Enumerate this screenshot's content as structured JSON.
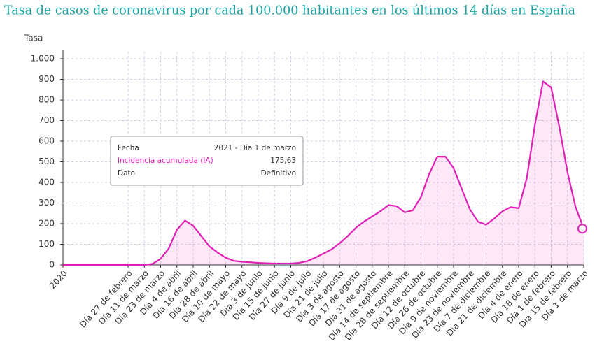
{
  "chart_data": {
    "type": "area",
    "title": "Tasa de casos de coronavirus por cada 100.000 habitantes en los últimos 14 días en España",
    "y_label": "Tasa",
    "categories": [
      "2020",
      null,
      null,
      null,
      null,
      null,
      null,
      null,
      "Día 27 de febrero",
      null,
      "Día 11 de marzo",
      null,
      "Día 23 de marzo",
      null,
      "Día 4 de abril",
      null,
      "Día 16 de abril",
      null,
      "Día 28 de abril",
      null,
      "Día 10 de mayo",
      null,
      "Día 22 de mayo",
      null,
      "Día 3 de junio",
      null,
      "Día 15 de junio",
      null,
      "Día 27 de junio",
      null,
      "Día 9 de julio",
      null,
      "Día 21 de julio",
      null,
      "Día 3 de agosto",
      null,
      "Día 17 de agosto",
      null,
      "Día 31 de agosto",
      null,
      "Día 14 de septiembre",
      null,
      "Día 28 de septiembre",
      null,
      "Día 12 de octubre",
      null,
      "Día 26 de octubre",
      null,
      "Día 9 de noviembre",
      null,
      "Día 23 de noviembre",
      null,
      "Día 7 de diciembre",
      null,
      "Día 21 de diciembre",
      null,
      "Día 4 de enero",
      null,
      "Día 18 de enero",
      null,
      "Día 1 de febrero",
      null,
      "Día 15 de febrero",
      null,
      "Día 1 de marzo"
    ],
    "series": [
      {
        "name": "Incidencia acumulada (IA)",
        "color": "#e020b4",
        "values": [
          0,
          0,
          0,
          0,
          0,
          0,
          0,
          0,
          0,
          0,
          0,
          5,
          30,
          80,
          170,
          215,
          190,
          140,
          90,
          60,
          35,
          20,
          15,
          13,
          10,
          8,
          7,
          7,
          7,
          10,
          18,
          35,
          55,
          75,
          105,
          140,
          180,
          210,
          235,
          260,
          290,
          285,
          255,
          265,
          330,
          440,
          525,
          525,
          470,
          370,
          270,
          210,
          195,
          225,
          260,
          280,
          275,
          420,
          680,
          890,
          860,
          670,
          450,
          280,
          175.63
        ]
      }
    ],
    "ylim": [
      0,
      1000
    ],
    "yticks": [
      0,
      100,
      200,
      300,
      400,
      500,
      600,
      700,
      800,
      900,
      {
        "value": 1000,
        "label": "1.000"
      }
    ],
    "grid": true,
    "tooltip": {
      "rows": [
        [
          "Fecha",
          "2021 - Día 1 de marzo"
        ],
        [
          "Incidencia acumulada (IA)",
          "175,63"
        ],
        [
          "Dato",
          "Definitivo"
        ]
      ]
    }
  }
}
